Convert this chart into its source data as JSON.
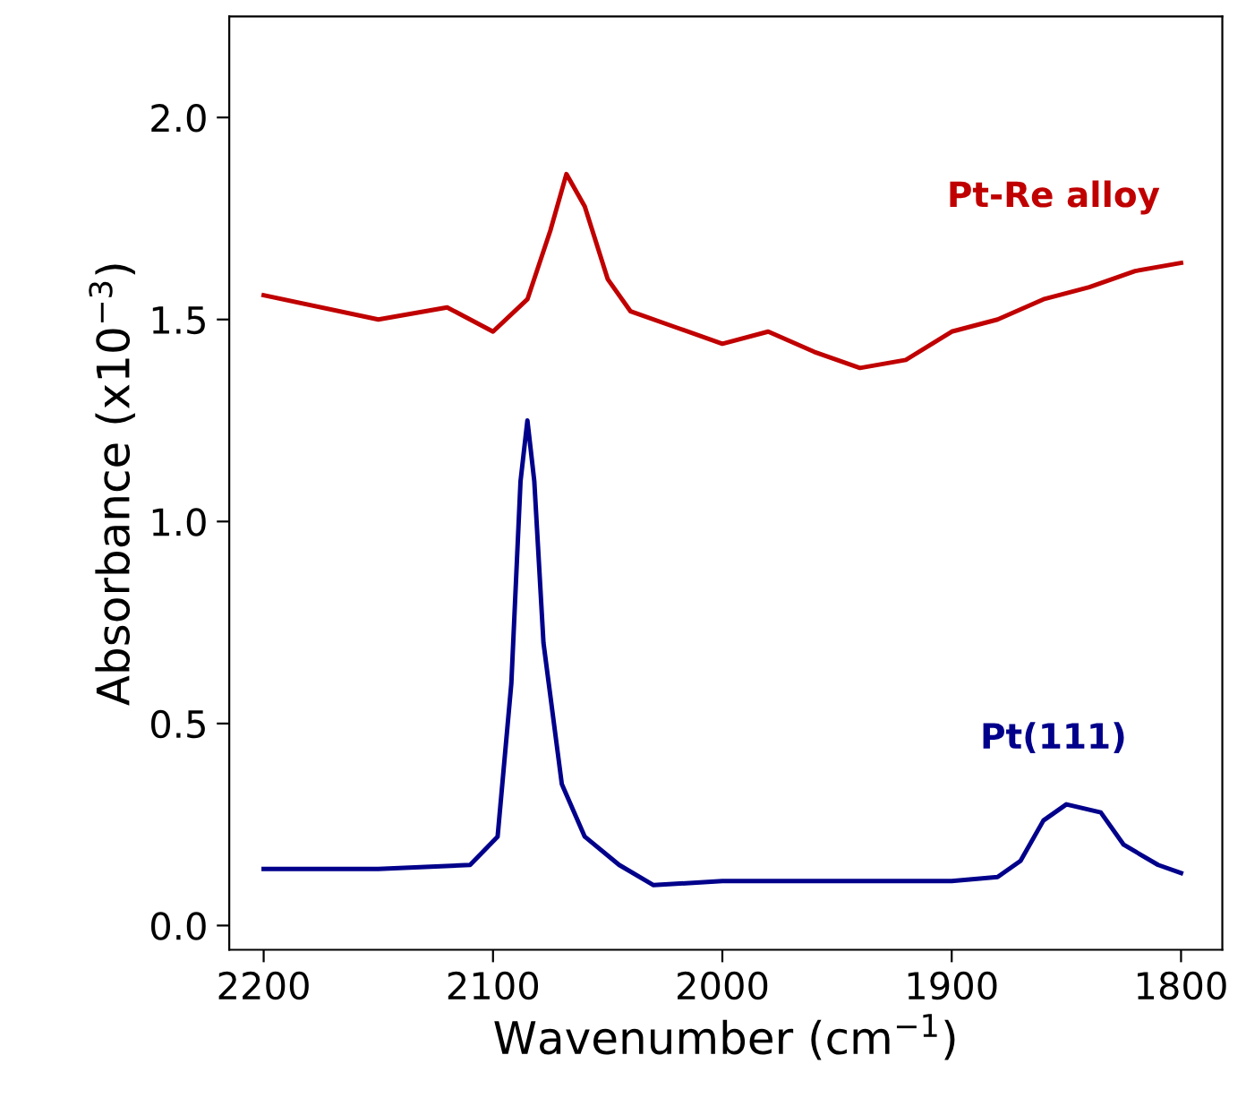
{
  "chart_data": {
    "type": "line",
    "xlabel": "Wavenumber (cm$^{−1}$)",
    "ylabel": "Absorbance (x10$^{−3}$)",
    "xlim": [
      2215,
      1782
    ],
    "xticks": [
      2200,
      2100,
      2000,
      1900,
      1800
    ],
    "ylim": [
      -0.06,
      2.25
    ],
    "yticks": [
      {
        "value": 0,
        "label": "0.0"
      },
      {
        "value": 0.5,
        "label": "0.5"
      },
      {
        "value": 1,
        "label": "1.0"
      },
      {
        "value": 1.5,
        "label": "1.5"
      },
      {
        "value": 2,
        "label": "2.0"
      }
    ],
    "grid": false,
    "legend": false,
    "series": [
      {
        "name": "Pt-Re alloy",
        "color": "#c00000",
        "x": [
          2200,
          2150,
          2120,
          2100,
          2085,
          2075,
          2068,
          2060,
          2050,
          2040,
          2020,
          2000,
          1980,
          1960,
          1940,
          1920,
          1900,
          1880,
          1860,
          1840,
          1820,
          1800
        ],
        "values": [
          1.56,
          1.5,
          1.53,
          1.47,
          1.55,
          1.72,
          1.86,
          1.78,
          1.6,
          1.52,
          1.48,
          1.44,
          1.47,
          1.42,
          1.38,
          1.4,
          1.47,
          1.5,
          1.55,
          1.58,
          1.62,
          1.64
        ]
      },
      {
        "name": "Pt(111)",
        "color": "#00008b",
        "x": [
          2200,
          2150,
          2110,
          2098,
          2092,
          2088,
          2085,
          2082,
          2078,
          2070,
          2060,
          2045,
          2030,
          2000,
          1950,
          1900,
          1880,
          1870,
          1860,
          1850,
          1835,
          1825,
          1810,
          1800
        ],
        "values": [
          0.14,
          0.14,
          0.15,
          0.22,
          0.6,
          1.1,
          1.25,
          1.1,
          0.7,
          0.35,
          0.22,
          0.15,
          0.1,
          0.11,
          0.11,
          0.11,
          0.12,
          0.16,
          0.26,
          0.3,
          0.28,
          0.2,
          0.15,
          0.13
        ]
      }
    ]
  }
}
